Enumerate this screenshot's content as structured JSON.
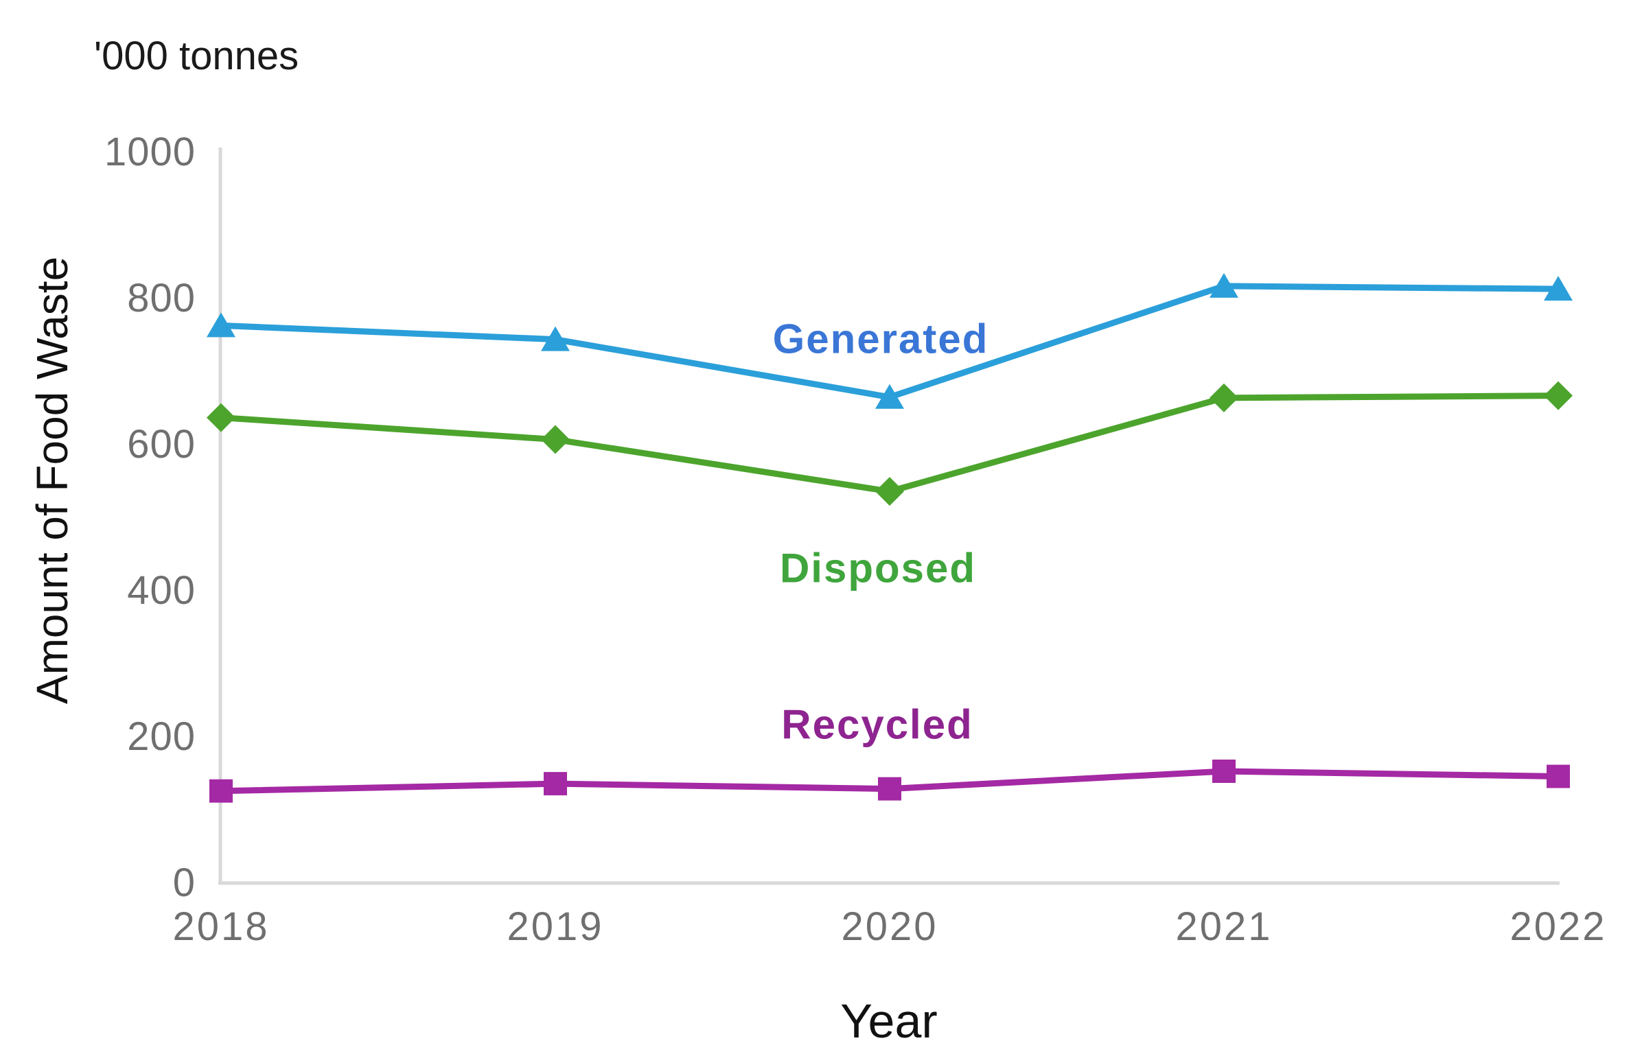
{
  "chart_data": {
    "type": "line",
    "unit_label": "'000 tonnes",
    "xlabel": "Year",
    "ylabel": "Amount of Food Waste",
    "categories": [
      "2018",
      "2019",
      "2020",
      "2021",
      "2022"
    ],
    "yticks": [
      0,
      200,
      400,
      600,
      800,
      1000
    ],
    "ylim": [
      0,
      1000
    ],
    "grid": false,
    "legend": "inline-labels-next-to-lines",
    "series": [
      {
        "name": "Generated",
        "marker": "triangle",
        "color": "#2B9FD9",
        "label_color": "#3A76D6",
        "values": [
          763,
          744,
          665,
          817,
          813
        ]
      },
      {
        "name": "Disposed",
        "marker": "diamond",
        "color": "#4CA42D",
        "label_color": "#3FA53C",
        "values": [
          637,
          607,
          536,
          664,
          667
        ]
      },
      {
        "name": "Recycled",
        "marker": "square",
        "color": "#A429A4",
        "label_color": "#8E2490",
        "values": [
          126,
          136,
          129,
          153,
          146
        ]
      }
    ],
    "axis_color": "#D9D9D9",
    "tick_color": "#6F6F6F"
  }
}
